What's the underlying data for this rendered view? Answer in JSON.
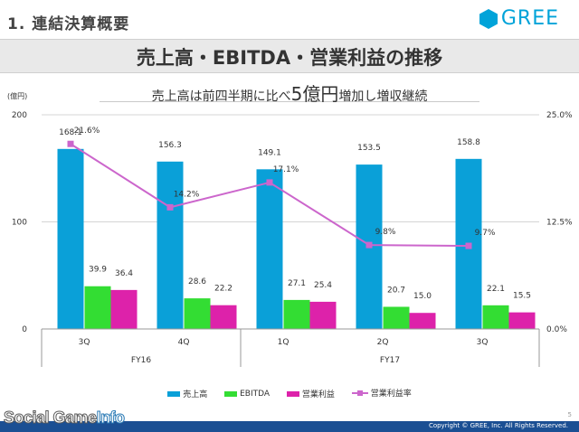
{
  "header": {
    "section": "1. 連結決算概要",
    "brand": "GREE",
    "title": "売上高・EBITDA・営業利益の推移",
    "subtitle_pre": "売上高は前四半期に比べ",
    "subtitle_big": "5億円",
    "subtitle_post": "増加し増収継続"
  },
  "colors": {
    "revenue": "#0aa0d8",
    "ebitda": "#33dd33",
    "op_income": "#dd22aa",
    "margin": "#cc66cc",
    "brand": "#00a3d9"
  },
  "chart_data": {
    "type": "bar",
    "unit_label": "(億円)",
    "categories": [
      "3Q",
      "4Q",
      "1Q",
      "2Q",
      "3Q"
    ],
    "groups": [
      {
        "label": "FY16",
        "start": 0,
        "end": 1
      },
      {
        "label": "FY17",
        "start": 2,
        "end": 4
      }
    ],
    "series": [
      {
        "name": "売上高",
        "values": [
          168.1,
          156.3,
          149.1,
          153.5,
          158.8
        ]
      },
      {
        "name": "EBITDA",
        "values": [
          39.9,
          28.6,
          27.1,
          20.7,
          22.1
        ]
      },
      {
        "name": "営業利益",
        "values": [
          36.4,
          22.2,
          25.4,
          15.0,
          15.5
        ]
      }
    ],
    "line_series": {
      "name": "営業利益率",
      "values": [
        21.6,
        14.2,
        17.1,
        9.8,
        9.7
      ],
      "labels": [
        "21.6%",
        "14.2%",
        "17.1%",
        "9.8%",
        "9.7%"
      ],
      "axis": "right"
    },
    "ylim": [
      0,
      200
    ],
    "y_ticks": [
      "0",
      "100",
      "200"
    ],
    "y2lim": [
      0,
      25
    ],
    "y2_ticks": [
      "0.0%",
      "12.5%",
      "25.0%"
    ],
    "legend_position": "bottom"
  },
  "footer": {
    "page": "5",
    "copyright": "Copyright © GREE, Inc. All Rights Reserved.",
    "watermark_a": "Social Game",
    "watermark_b": "Info"
  }
}
